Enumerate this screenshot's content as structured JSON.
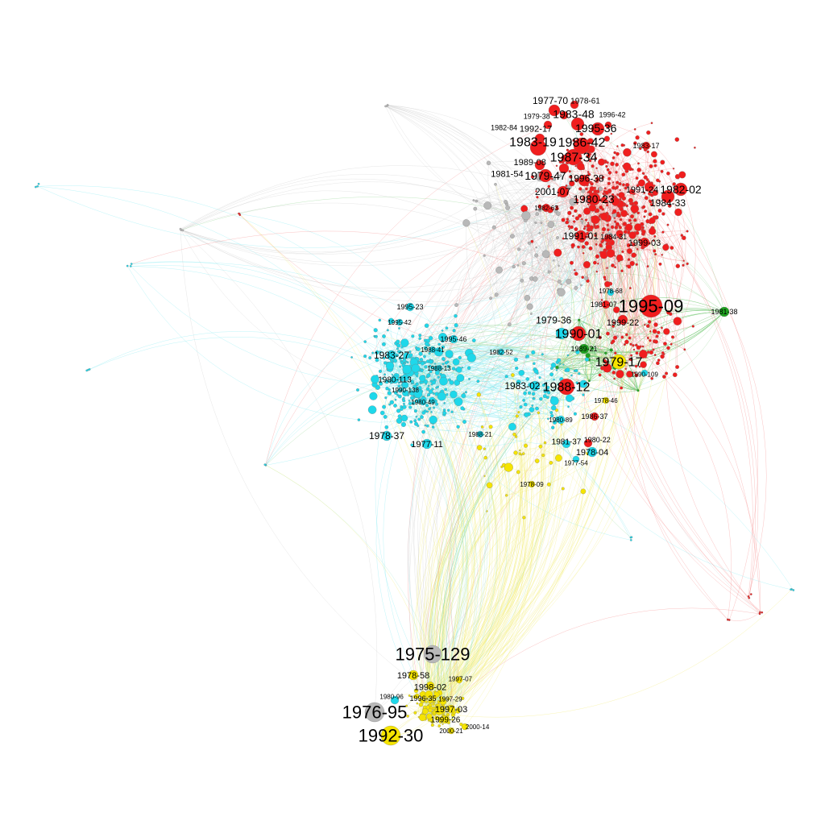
{
  "graph": {
    "colors": {
      "red": "#f01e1e",
      "cyan": "#1ed8ea",
      "yellow": "#f5e400",
      "green": "#1fa31f",
      "gray": "#b8b8b8"
    },
    "labeled_nodes": [
      {
        "label": "1995-09",
        "group": "red"
      },
      {
        "label": "1975-129",
        "group": "gray"
      },
      {
        "label": "1976-95",
        "group": "gray"
      },
      {
        "label": "1992-30",
        "group": "yellow"
      },
      {
        "label": "1979-17",
        "group": "yellow"
      },
      {
        "label": "1988-12",
        "group": "red"
      },
      {
        "label": "1990-01",
        "group": "red"
      },
      {
        "label": "1987-34",
        "group": "red"
      },
      {
        "label": "1983-19",
        "group": "red"
      },
      {
        "label": "1986-42",
        "group": "red"
      },
      {
        "label": "1995-36",
        "group": "red"
      },
      {
        "label": "1983-48",
        "group": "red"
      },
      {
        "label": "1982-02",
        "group": "red"
      },
      {
        "label": "1984-33",
        "group": "red"
      },
      {
        "label": "1980-23",
        "group": "red"
      },
      {
        "label": "1991-01",
        "group": "red"
      },
      {
        "label": "1979-47",
        "group": "red"
      },
      {
        "label": "2001-07",
        "group": "red"
      },
      {
        "label": "1996-38",
        "group": "red"
      },
      {
        "label": "1989-08",
        "group": "red"
      },
      {
        "label": "1981-54",
        "group": "red"
      },
      {
        "label": "1992-17",
        "group": "red"
      },
      {
        "label": "1977-70",
        "group": "red"
      },
      {
        "label": "1978-61",
        "group": "red"
      },
      {
        "label": "1979-38",
        "group": "red"
      },
      {
        "label": "1982-84",
        "group": "red"
      },
      {
        "label": "1996-42",
        "group": "red"
      },
      {
        "label": "1991-24",
        "group": "red"
      },
      {
        "label": "1999-03",
        "group": "red"
      },
      {
        "label": "1984-31",
        "group": "red"
      },
      {
        "label": "1983-17",
        "group": "red"
      },
      {
        "label": "1982-63",
        "group": "red"
      },
      {
        "label": "1999-22",
        "group": "red"
      },
      {
        "label": "1981-07",
        "group": "red"
      },
      {
        "label": "1986-37",
        "group": "red"
      },
      {
        "label": "1980-22",
        "group": "red"
      },
      {
        "label": "1983-27",
        "group": "cyan"
      },
      {
        "label": "1978-37",
        "group": "cyan"
      },
      {
        "label": "1977-11",
        "group": "cyan"
      },
      {
        "label": "1995-23",
        "group": "cyan"
      },
      {
        "label": "1995-46",
        "group": "cyan"
      },
      {
        "label": "1995-42",
        "group": "cyan"
      },
      {
        "label": "1980-113",
        "group": "cyan"
      },
      {
        "label": "1990-138",
        "group": "cyan"
      },
      {
        "label": "1988-41",
        "group": "cyan"
      },
      {
        "label": "1988-13",
        "group": "cyan"
      },
      {
        "label": "1982-52",
        "group": "cyan"
      },
      {
        "label": "1983-02",
        "group": "cyan"
      },
      {
        "label": "1979-36",
        "group": "cyan"
      },
      {
        "label": "1978-04",
        "group": "cyan"
      },
      {
        "label": "1981-37",
        "group": "cyan"
      },
      {
        "label": "1980-89",
        "group": "cyan"
      },
      {
        "label": "1990-109",
        "group": "cyan"
      },
      {
        "label": "1978-68",
        "group": "cyan"
      },
      {
        "label": "1977-54",
        "group": "cyan"
      },
      {
        "label": "1980-49",
        "group": "cyan"
      },
      {
        "label": "1988-21",
        "group": "cyan"
      },
      {
        "label": "1989-21",
        "group": "green"
      },
      {
        "label": "1981-38",
        "group": "green"
      },
      {
        "label": "1978-46",
        "group": "yellow"
      },
      {
        "label": "1978-09",
        "group": "yellow"
      },
      {
        "label": "1978-58",
        "group": "yellow"
      },
      {
        "label": "1998-02",
        "group": "yellow"
      },
      {
        "label": "1997-03",
        "group": "yellow"
      },
      {
        "label": "1999-26",
        "group": "yellow"
      },
      {
        "label": "1997-07",
        "group": "yellow"
      },
      {
        "label": "1996-35",
        "group": "yellow"
      },
      {
        "label": "1997-29",
        "group": "yellow"
      },
      {
        "label": "2000-21",
        "group": "yellow"
      },
      {
        "label": "2000-14",
        "group": "yellow"
      },
      {
        "label": "1980-96",
        "group": "cyan"
      }
    ]
  }
}
